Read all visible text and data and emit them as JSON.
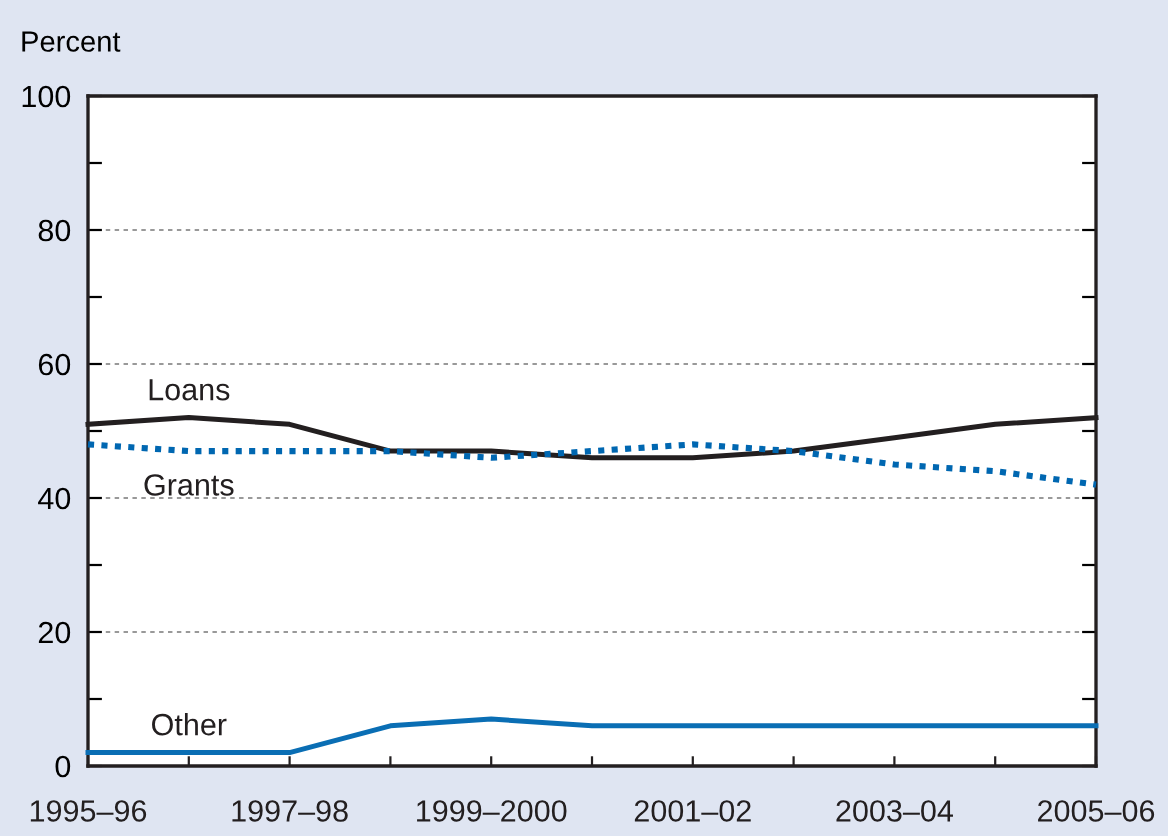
{
  "chart_data": {
    "type": "line",
    "ylabel": "Percent",
    "categories": [
      "1995–96",
      null,
      "1997–98",
      null,
      "1999–2000",
      null,
      "2001–02",
      null,
      "2003–04",
      null,
      "2005–06"
    ],
    "series": [
      {
        "name": "Loans",
        "color": "#231f20",
        "line_style": "solid",
        "values": [
          51,
          52,
          51,
          47,
          47,
          46,
          46,
          47,
          49,
          51,
          52
        ]
      },
      {
        "name": "Grants",
        "color": "#0067b1",
        "line_style": "dotted",
        "values": [
          48,
          47,
          47,
          47,
          46,
          47,
          48,
          47,
          45,
          44,
          42
        ]
      },
      {
        "name": "Other",
        "color": "#0a6eb4",
        "line_style": "solid",
        "values": [
          2,
          2,
          2,
          6,
          7,
          6,
          6,
          6,
          6,
          6,
          6
        ]
      }
    ],
    "ylim": [
      0,
      100
    ],
    "yticks": [
      0,
      {
        "value": 10,
        "label": null
      },
      20,
      {
        "value": 30,
        "label": null
      },
      40,
      {
        "value": 50,
        "label": null
      },
      60,
      {
        "value": 70,
        "label": null
      },
      80,
      {
        "value": 90,
        "label": null
      },
      100
    ],
    "grid": "y",
    "legend": false,
    "marker": "none"
  }
}
